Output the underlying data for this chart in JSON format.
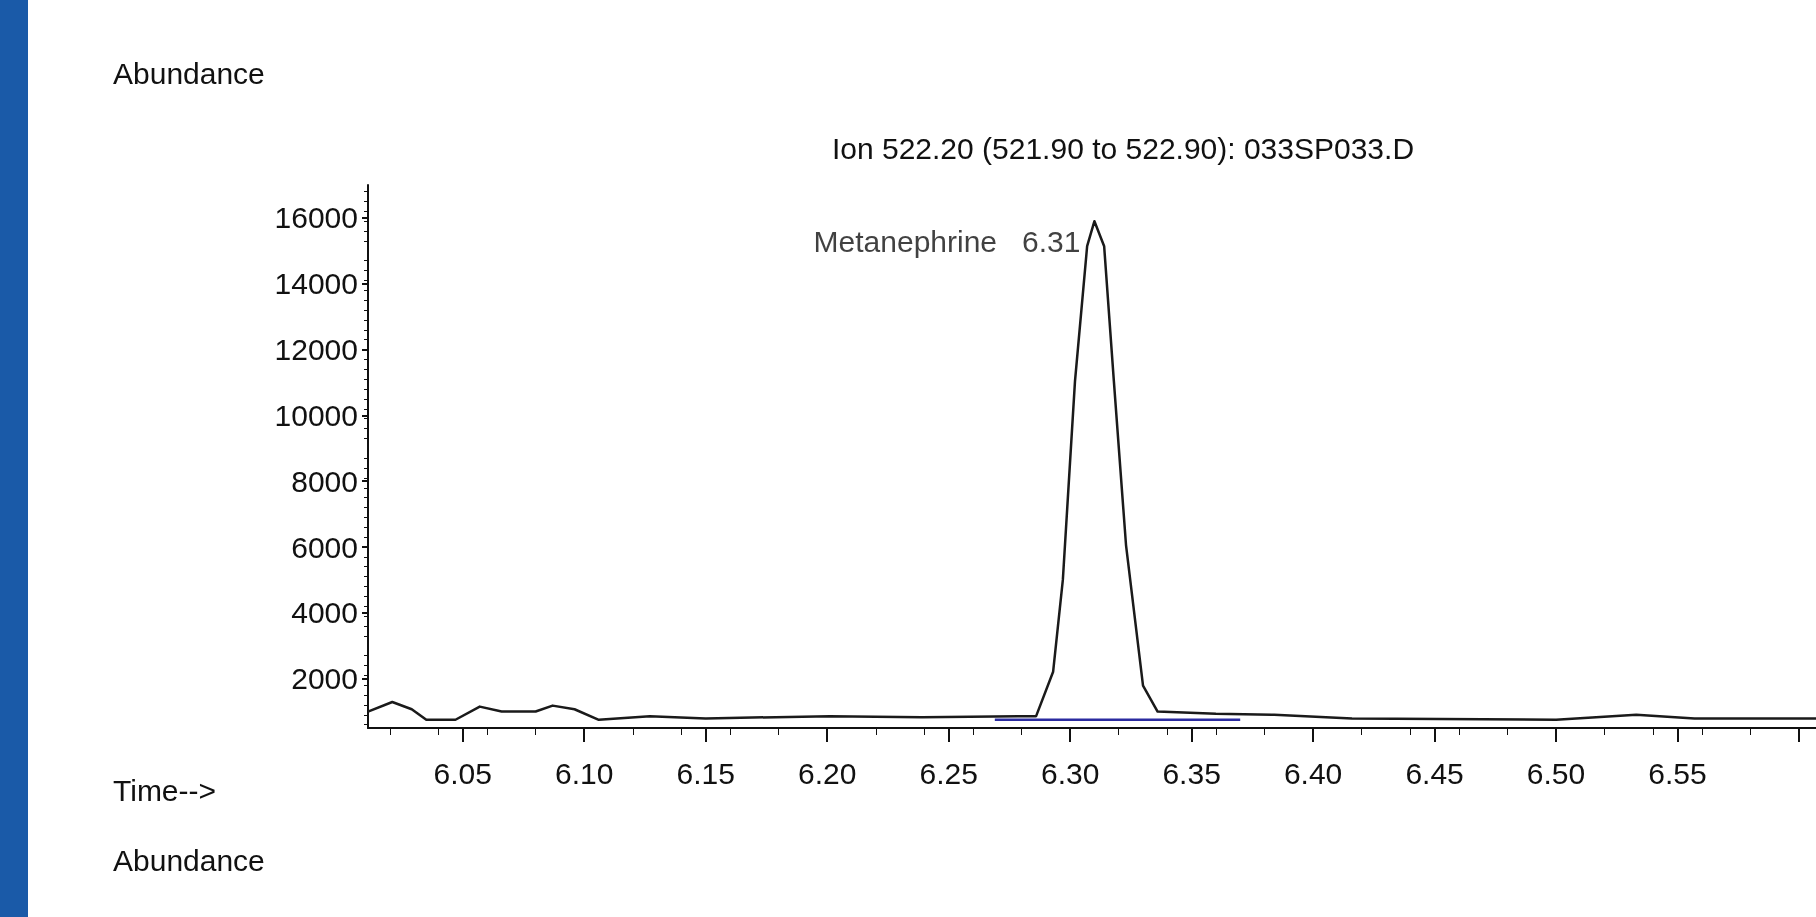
{
  "chart_data": {
    "type": "line",
    "title": "Ion 522.20 (521.90 to 522.90): 033SP033.D",
    "xlabel": "Time-->",
    "ylabel": "Abundance",
    "annotations": [
      {
        "text": "Metanephrine   6.31",
        "x": 6.31,
        "y": 15900
      },
      "Abundance"
    ],
    "xlim": [
      6.011,
      6.607
    ],
    "ylim": [
      500,
      17000
    ],
    "xticks": [
      6.05,
      {
        "value": 6.1,
        "label": "6.10"
      },
      6.15,
      {
        "value": 6.2,
        "label": "6.20"
      },
      6.25,
      {
        "value": 6.3,
        "label": "6.30"
      },
      6.35,
      {
        "value": 6.4,
        "label": "6.40"
      },
      6.45,
      {
        "value": 6.5,
        "label": "6.50"
      },
      6.55,
      {
        "value": 6.6,
        "label": null
      }
    ],
    "yticks": [
      2000,
      4000,
      6000,
      8000,
      10000,
      12000,
      14000,
      16000
    ],
    "grid": false,
    "marker": "none",
    "line_style": "solid",
    "series": [
      {
        "color": "#1a1a1a",
        "x": [
          6.011,
          6.021,
          6.029,
          6.035,
          6.047,
          6.057,
          6.066,
          6.08,
          6.087,
          6.096,
          6.106,
          6.127,
          6.15,
          6.201,
          6.239,
          6.286,
          6.293,
          6.297,
          6.302,
          6.307,
          6.31,
          6.314,
          6.318,
          6.323,
          6.33,
          6.336,
          6.36,
          6.384,
          6.416,
          6.5,
          6.533,
          6.557,
          6.607
        ],
        "values": [
          1000,
          1290,
          1070,
          750,
          750,
          1150,
          1000,
          1000,
          1180,
          1070,
          750,
          860,
          790,
          860,
          830,
          860,
          2210,
          5000,
          11040,
          15140,
          15900,
          15140,
          11040,
          6060,
          1790,
          1000,
          930,
          900,
          790,
          750,
          900,
          790,
          790
        ]
      },
      {
        "color": "#2b2ba0",
        "x": [
          6.269,
          6.37
        ],
        "values": [
          750,
          750
        ]
      }
    ]
  }
}
